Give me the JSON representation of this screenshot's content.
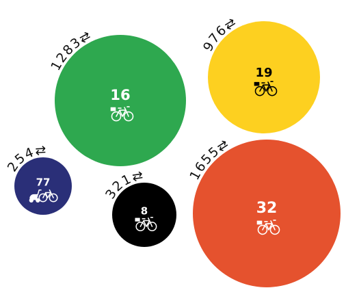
{
  "chart_data": {
    "type": "bubble",
    "value_field": "trips",
    "count_field": "bikes",
    "bubbles": [
      {
        "trips": 1283,
        "bikes": 16,
        "color": "#2ea84f",
        "text_color": "#ffffff",
        "icon": "bicycle-icon"
      },
      {
        "trips": 976,
        "bikes": 19,
        "color": "#fdd020",
        "text_color": "#000000",
        "icon": "bicycle-icon"
      },
      {
        "trips": 254,
        "bikes": 77,
        "color": "#2a2f78",
        "text_color": "#ffffff",
        "icon": "scooter-bicycle-icon"
      },
      {
        "trips": 321,
        "bikes": 8,
        "color": "#000000",
        "text_color": "#ffffff",
        "icon": "bicycle-icon"
      },
      {
        "trips": 1655,
        "bikes": 32,
        "color": "#e5522e",
        "text_color": "#ffffff",
        "icon": "bicycle-icon"
      }
    ],
    "trip_symbol": "⇄"
  }
}
